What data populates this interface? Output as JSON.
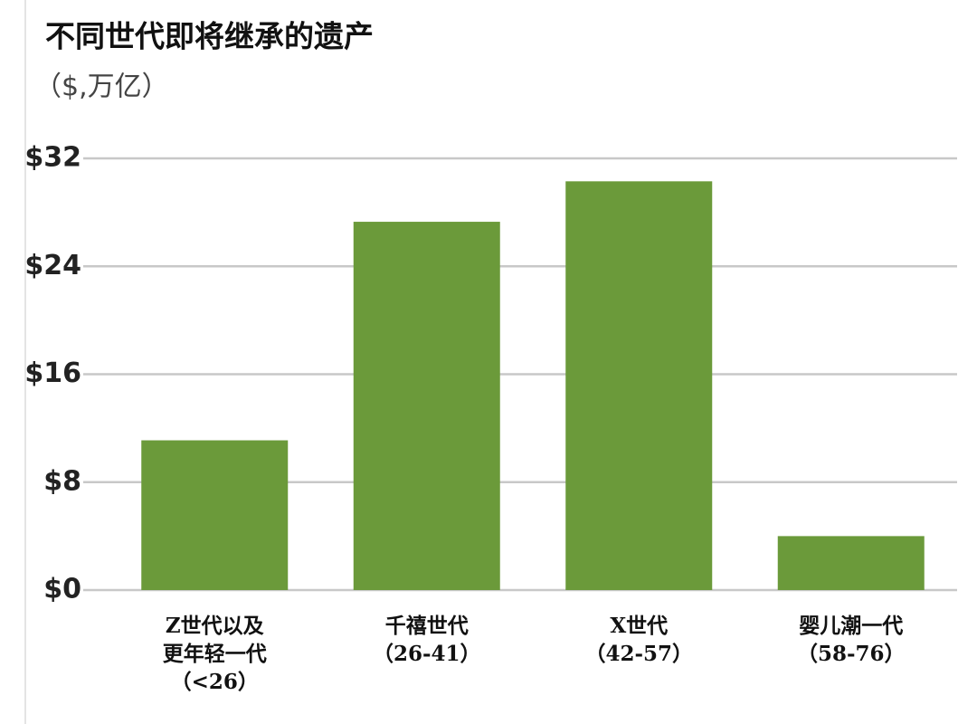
{
  "chart_data": {
    "type": "bar",
    "title": "不同世代即将继承的遗产",
    "subtitle": "（$,万亿）",
    "categories": [
      "Z世代以及\n更年轻一代\n（<26）",
      "千禧世代\n（26-41）",
      "X世代\n（42-57）",
      "婴儿潮一代\n（58-76）"
    ],
    "values": [
      11.1,
      27.3,
      30.3,
      4.0
    ],
    "color": "#6b9a3a",
    "ylim": [
      0,
      32
    ],
    "yticks": [
      {
        "value": 0,
        "label": "$0"
      },
      {
        "value": 8,
        "label": "$8"
      },
      {
        "value": 16,
        "label": "$16"
      },
      {
        "value": 24,
        "label": "$24"
      },
      {
        "value": 32,
        "label": "$32"
      }
    ],
    "grid": true
  }
}
